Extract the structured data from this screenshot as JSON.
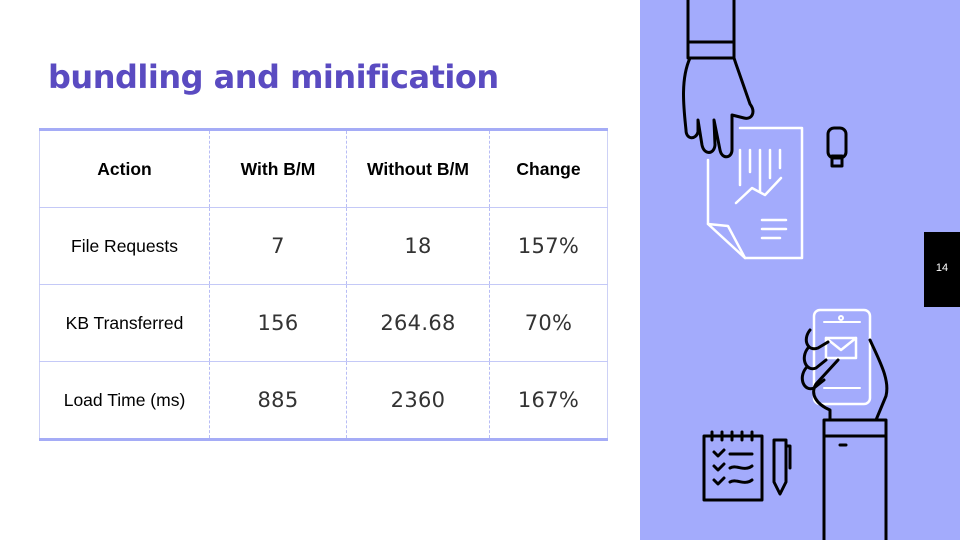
{
  "slide": {
    "title": "bundling and minification",
    "page_number": "14"
  },
  "table": {
    "headers": [
      "Action",
      "With B/M",
      "Without B/M",
      "Change"
    ],
    "rows": [
      [
        "File Requests",
        "7",
        "18",
        "157%"
      ],
      [
        "KB Transferred",
        "156",
        "264.68",
        "70%"
      ],
      [
        "Load Time (ms)",
        "885",
        "2360",
        "167%"
      ]
    ]
  },
  "colors": {
    "title": "#5a4bc1",
    "panel": "#a3abfc",
    "table_rule": "#a5acf6"
  },
  "illustration": {
    "icons": [
      "hand-icon",
      "document-chart-icon",
      "usb-drive-icon",
      "smartphone-icon",
      "email-icon",
      "notepad-icon",
      "pen-icon"
    ]
  }
}
